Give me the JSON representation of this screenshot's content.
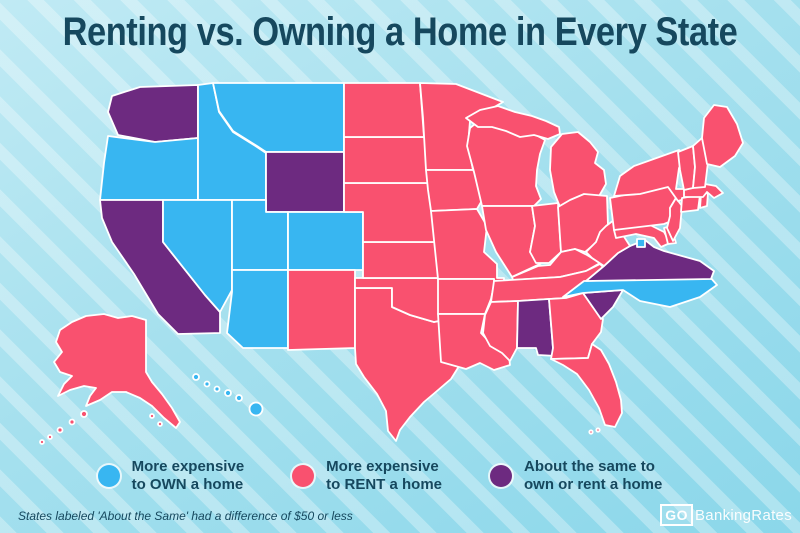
{
  "title": "Renting vs. Owning a Home in Every State",
  "legend": [
    {
      "id": "own",
      "color": "#38b6f1",
      "line1": "More expensive",
      "line2": "to OWN a home",
      "label": "More expensive to OWN a home"
    },
    {
      "id": "rent",
      "color": "#f9516f",
      "line1": "More expensive",
      "line2": "to RENT a home",
      "label": "More expensive to RENT a home"
    },
    {
      "id": "same",
      "color": "#6d2a80",
      "line1": "About the same to",
      "line2": "own or rent a home",
      "label": "About the same to own or rent a home"
    }
  ],
  "footnote": "States labeled 'About the Same' had a difference of $50 or less",
  "logo": {
    "go": "GO",
    "rest": "BankingRates"
  },
  "chart_data": {
    "type": "heatmap",
    "subtype": "us-choropleth-map",
    "title": "Renting vs. Owning a Home in Every State",
    "legend_position": "bottom",
    "categories": {
      "own": "More expensive to OWN a home",
      "rent": "More expensive to RENT a home",
      "same": "About the same to own or rent a home"
    },
    "category_colors": {
      "own": "#38b6f1",
      "rent": "#f9516f",
      "same": "#6d2a80"
    },
    "states": [
      {
        "id": "WA",
        "name": "Washington",
        "category": "same"
      },
      {
        "id": "OR",
        "name": "Oregon",
        "category": "own"
      },
      {
        "id": "CA",
        "name": "California",
        "category": "same"
      },
      {
        "id": "ID",
        "name": "Idaho",
        "category": "own"
      },
      {
        "id": "MT",
        "name": "Montana",
        "category": "own"
      },
      {
        "id": "WY",
        "name": "Wyoming",
        "category": "same"
      },
      {
        "id": "NV",
        "name": "Nevada",
        "category": "own"
      },
      {
        "id": "UT",
        "name": "Utah",
        "category": "own"
      },
      {
        "id": "CO",
        "name": "Colorado",
        "category": "own"
      },
      {
        "id": "AZ",
        "name": "Arizona",
        "category": "own"
      },
      {
        "id": "NM",
        "name": "New Mexico",
        "category": "rent"
      },
      {
        "id": "TX",
        "name": "Texas",
        "category": "rent"
      },
      {
        "id": "OK",
        "name": "Oklahoma",
        "category": "rent"
      },
      {
        "id": "KS",
        "name": "Kansas",
        "category": "rent"
      },
      {
        "id": "NE",
        "name": "Nebraska",
        "category": "rent"
      },
      {
        "id": "SD",
        "name": "South Dakota",
        "category": "rent"
      },
      {
        "id": "ND",
        "name": "North Dakota",
        "category": "rent"
      },
      {
        "id": "MN",
        "name": "Minnesota",
        "category": "rent"
      },
      {
        "id": "IA",
        "name": "Iowa",
        "category": "rent"
      },
      {
        "id": "MO",
        "name": "Missouri",
        "category": "rent"
      },
      {
        "id": "AR",
        "name": "Arkansas",
        "category": "rent"
      },
      {
        "id": "LA",
        "name": "Louisiana",
        "category": "rent"
      },
      {
        "id": "WI",
        "name": "Wisconsin",
        "category": "rent"
      },
      {
        "id": "IL",
        "name": "Illinois",
        "category": "rent"
      },
      {
        "id": "MI",
        "name": "Michigan",
        "category": "rent"
      },
      {
        "id": "IN",
        "name": "Indiana",
        "category": "rent"
      },
      {
        "id": "OH",
        "name": "Ohio",
        "category": "rent"
      },
      {
        "id": "KY",
        "name": "Kentucky",
        "category": "rent"
      },
      {
        "id": "TN",
        "name": "Tennessee",
        "category": "rent"
      },
      {
        "id": "MS",
        "name": "Mississippi",
        "category": "rent"
      },
      {
        "id": "AL",
        "name": "Alabama",
        "category": "same"
      },
      {
        "id": "GA",
        "name": "Georgia",
        "category": "rent"
      },
      {
        "id": "FL",
        "name": "Florida",
        "category": "rent"
      },
      {
        "id": "SC",
        "name": "South Carolina",
        "category": "same"
      },
      {
        "id": "NC",
        "name": "North Carolina",
        "category": "own"
      },
      {
        "id": "VA",
        "name": "Virginia",
        "category": "same"
      },
      {
        "id": "WV",
        "name": "West Virginia",
        "category": "rent"
      },
      {
        "id": "MD",
        "name": "Maryland",
        "category": "rent"
      },
      {
        "id": "DE",
        "name": "Delaware",
        "category": "rent"
      },
      {
        "id": "PA",
        "name": "Pennsylvania",
        "category": "rent"
      },
      {
        "id": "NJ",
        "name": "New Jersey",
        "category": "rent"
      },
      {
        "id": "NY",
        "name": "New York",
        "category": "rent"
      },
      {
        "id": "CT",
        "name": "Connecticut",
        "category": "rent"
      },
      {
        "id": "RI",
        "name": "Rhode Island",
        "category": "rent"
      },
      {
        "id": "MA",
        "name": "Massachusetts",
        "category": "rent"
      },
      {
        "id": "VT",
        "name": "Vermont",
        "category": "rent"
      },
      {
        "id": "NH",
        "name": "New Hampshire",
        "category": "rent"
      },
      {
        "id": "ME",
        "name": "Maine",
        "category": "rent"
      },
      {
        "id": "AK",
        "name": "Alaska",
        "category": "rent"
      },
      {
        "id": "HI",
        "name": "Hawaii",
        "category": "own"
      },
      {
        "id": "DC",
        "name": "District of Columbia",
        "category": "own"
      }
    ]
  }
}
